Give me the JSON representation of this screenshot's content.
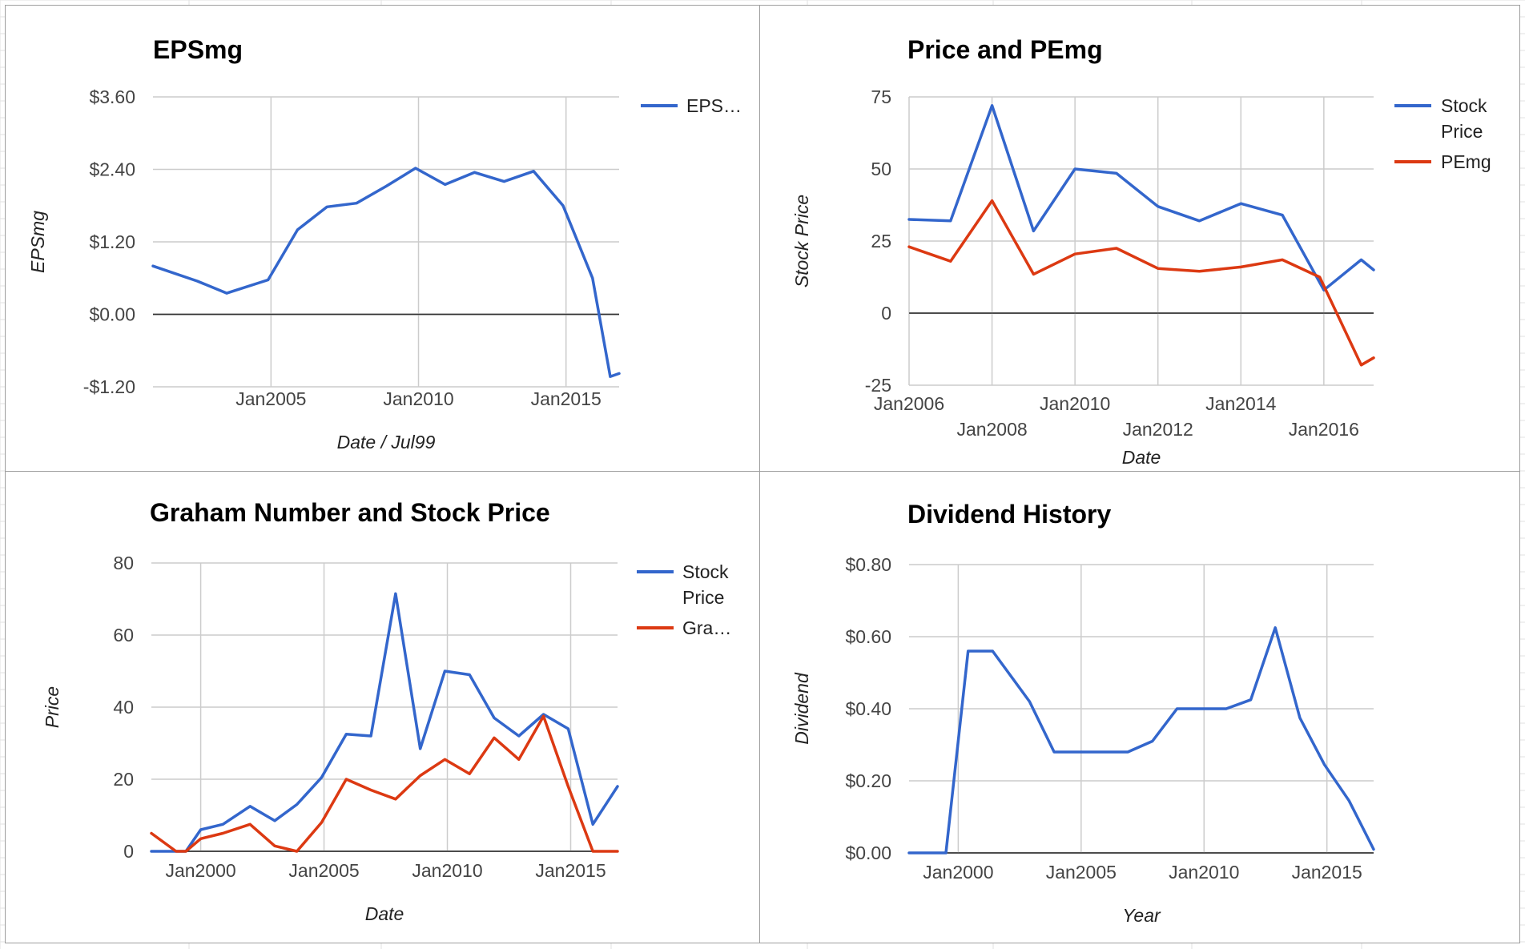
{
  "colors": {
    "blue": "#3366cc",
    "red": "#dc3912",
    "grid": "#cccccc",
    "border": "#9e9e9e"
  },
  "chart_data": [
    {
      "id": "eps",
      "type": "line",
      "title": "EPSmg",
      "xlabel": "Date / Jul99",
      "ylabel": "EPSmg",
      "xlim": [
        2001,
        2016.8
      ],
      "ylim": [
        -1.2,
        3.6
      ],
      "yticks": [
        {
          "value": 3.6,
          "label": "$3.60"
        },
        {
          "value": 2.4,
          "label": "$2.40"
        },
        {
          "value": 1.2,
          "label": "$1.20"
        },
        {
          "value": 0,
          "label": "$0.00"
        },
        {
          "value": -1.2,
          "label": "-$1.20"
        }
      ],
      "xticks": [
        {
          "value": 2005,
          "label": "Jan2005",
          "row": 0
        },
        {
          "value": 2010,
          "label": "Jan2010",
          "row": 0
        },
        {
          "value": 2015,
          "label": "Jan2015",
          "row": 0
        }
      ],
      "grid": true,
      "legend_position": "right",
      "series": [
        {
          "name": "EPS…",
          "color": "#3366cc",
          "x": [
            2001,
            2002.5,
            2003.5,
            2004.9,
            2005.9,
            2006.9,
            2007.9,
            2008.9,
            2009.9,
            2010.9,
            2011.9,
            2012.9,
            2013.9,
            2014.9,
            2015.9,
            2016.5,
            2016.8
          ],
          "y": [
            0.8,
            0.55,
            0.35,
            0.57,
            1.4,
            1.78,
            1.84,
            2.12,
            2.42,
            2.15,
            2.35,
            2.2,
            2.37,
            1.8,
            0.6,
            -1.03,
            -0.98
          ]
        }
      ]
    },
    {
      "id": "pe",
      "type": "line",
      "title": "Price and PEmg",
      "xlabel": "Date",
      "ylabel": "Stock Price",
      "xlim": [
        2006,
        2017.2
      ],
      "ylim": [
        -25,
        75
      ],
      "yticks": [
        {
          "value": 75,
          "label": "75"
        },
        {
          "value": 50,
          "label": "50"
        },
        {
          "value": 25,
          "label": "25"
        },
        {
          "value": 0,
          "label": "0"
        },
        {
          "value": -25,
          "label": "-25"
        }
      ],
      "xticks": [
        {
          "value": 2006,
          "label": "Jan2006",
          "row": 0
        },
        {
          "value": 2008,
          "label": "Jan2008",
          "row": 1
        },
        {
          "value": 2010,
          "label": "Jan2010",
          "row": 0
        },
        {
          "value": 2012,
          "label": "Jan2012",
          "row": 1
        },
        {
          "value": 2014,
          "label": "Jan2014",
          "row": 0
        },
        {
          "value": 2016,
          "label": "Jan2016",
          "row": 1
        }
      ],
      "grid": true,
      "legend_position": "right",
      "series": [
        {
          "name": "Stock Price",
          "color": "#3366cc",
          "x": [
            2006,
            2007,
            2008,
            2009,
            2010,
            2011,
            2012,
            2013,
            2014,
            2015,
            2016,
            2016.9,
            2017.2
          ],
          "y": [
            32.5,
            32,
            72,
            28.5,
            50,
            48.5,
            37,
            32,
            38,
            34,
            8,
            18.5,
            15
          ]
        },
        {
          "name": "PEmg",
          "color": "#dc3912",
          "x": [
            2006,
            2007,
            2008,
            2009,
            2010,
            2011,
            2012,
            2013,
            2014,
            2015,
            2015.9,
            2016.9,
            2017.2
          ],
          "y": [
            23,
            18,
            39,
            13.5,
            20.5,
            22.5,
            15.5,
            14.5,
            16,
            18.5,
            12.5,
            -18,
            -15.5
          ]
        }
      ]
    },
    {
      "id": "graham",
      "type": "line",
      "title": "Graham Number and Stock Price",
      "xlabel": "Date",
      "ylabel": "Price",
      "xlim": [
        1998,
        2016.9
      ],
      "ylim": [
        0,
        80
      ],
      "yticks": [
        {
          "value": 80,
          "label": "80"
        },
        {
          "value": 60,
          "label": "60"
        },
        {
          "value": 40,
          "label": "40"
        },
        {
          "value": 20,
          "label": "20"
        },
        {
          "value": 0,
          "label": "0"
        }
      ],
      "xticks": [
        {
          "value": 2000,
          "label": "Jan2000",
          "row": 0
        },
        {
          "value": 2005,
          "label": "Jan2005",
          "row": 0
        },
        {
          "value": 2010,
          "label": "Jan2010",
          "row": 0
        },
        {
          "value": 2015,
          "label": "Jan2015",
          "row": 0
        }
      ],
      "grid": true,
      "legend_position": "right",
      "series": [
        {
          "name": "Stock Price",
          "color": "#3366cc",
          "x": [
            1998,
            1999,
            1999.4,
            2000,
            2000.9,
            2002,
            2003,
            2003.9,
            2004.9,
            2005.9,
            2006.9,
            2007.9,
            2008.9,
            2009.9,
            2010.9,
            2011.9,
            2012.9,
            2013.9,
            2014.9,
            2015.9,
            2016.9
          ],
          "y": [
            0,
            0,
            0,
            6,
            7.5,
            12.5,
            8.5,
            13,
            20.5,
            32.5,
            32,
            71.5,
            28.5,
            50,
            49,
            37,
            32,
            38,
            34,
            7.5,
            18
          ]
        },
        {
          "name": "Gra…",
          "color": "#dc3912",
          "x": [
            1998,
            1999,
            1999.4,
            2000,
            2000.9,
            2002,
            2003,
            2003.9,
            2004.9,
            2005.9,
            2006.9,
            2007.9,
            2008.9,
            2009.9,
            2010.9,
            2011.9,
            2012.9,
            2013.9,
            2014.9,
            2015.9,
            2016.9
          ],
          "y": [
            5,
            0,
            0,
            3.5,
            5,
            7.5,
            1.5,
            0,
            8,
            20,
            17,
            14.5,
            21,
            25.5,
            21.5,
            31.5,
            25.5,
            37.5,
            18,
            0,
            0
          ]
        }
      ]
    },
    {
      "id": "dividend",
      "type": "line",
      "title": "Dividend History",
      "xlabel": "Year",
      "ylabel": "Dividend",
      "xlim": [
        1998,
        2016.9
      ],
      "ylim": [
        0,
        0.8
      ],
      "yticks": [
        {
          "value": 0.8,
          "label": "$0.80"
        },
        {
          "value": 0.6,
          "label": "$0.60"
        },
        {
          "value": 0.4,
          "label": "$0.40"
        },
        {
          "value": 0.2,
          "label": "$0.20"
        },
        {
          "value": 0,
          "label": "$0.00"
        }
      ],
      "xticks": [
        {
          "value": 2000,
          "label": "Jan2000",
          "row": 0
        },
        {
          "value": 2005,
          "label": "Jan2005",
          "row": 0
        },
        {
          "value": 2010,
          "label": "Jan2010",
          "row": 0
        },
        {
          "value": 2015,
          "label": "Jan2015",
          "row": 0
        }
      ],
      "grid": true,
      "legend_position": "none",
      "series": [
        {
          "name": "",
          "color": "#3366cc",
          "x": [
            1998,
            1999.5,
            2000.4,
            2001.4,
            2002.9,
            2003.9,
            2004.9,
            2005.9,
            2006.9,
            2007.9,
            2008.9,
            2009.9,
            2010.9,
            2011.9,
            2012.9,
            2013.9,
            2014.9,
            2015.9,
            2016.9
          ],
          "y": [
            0,
            0,
            0.56,
            0.56,
            0.42,
            0.28,
            0.28,
            0.28,
            0.28,
            0.31,
            0.4,
            0.4,
            0.4,
            0.425,
            0.625,
            0.375,
            0.245,
            0.145,
            0.01
          ]
        }
      ]
    }
  ]
}
